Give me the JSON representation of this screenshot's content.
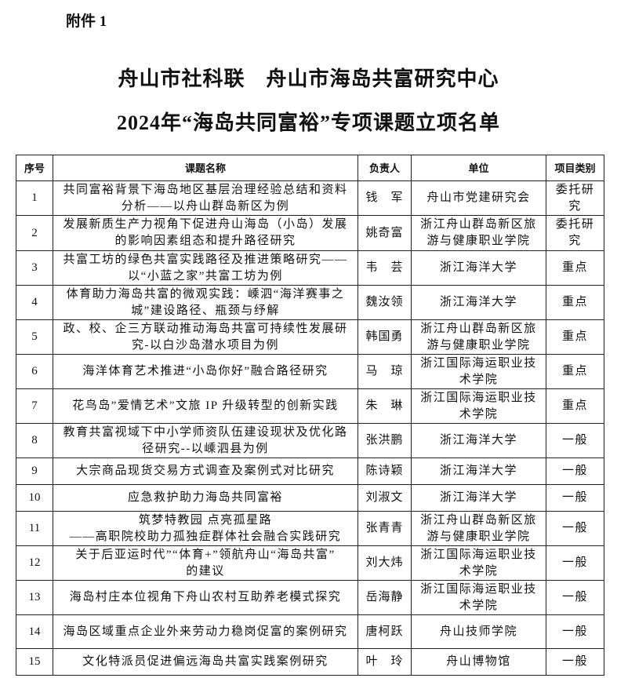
{
  "attachment_label": "附件 1",
  "title_line1": "舟山市社科联　舟山市海岛共富研究中心",
  "title_line2": "2024年“海岛共同富裕”专项课题立项名单",
  "table": {
    "headers": [
      "序号",
      "课题名称",
      "负责人",
      "单位",
      "项目类别"
    ],
    "rows": [
      {
        "no": "1",
        "title": [
          "共同富裕背景下海岛地区基层治理经验总结和资料",
          "分析——以舟山群岛新区为例"
        ],
        "person": "钱　军",
        "unit": [
          "舟山市党建研究会"
        ],
        "category": "委托研究"
      },
      {
        "no": "2",
        "title": [
          "发展新质生产力视角下促进舟山海岛（小岛）发展",
          "的影响因素组态和提升路径研究"
        ],
        "person": "姚奇富",
        "unit": [
          "浙江舟山群岛新区旅",
          "游与健康职业学院"
        ],
        "category": "委托研究"
      },
      {
        "no": "3",
        "title": [
          "共富工坊的绿色共富实践路径及推进策略研究——",
          "以“小蓝之家”共富工坊为例"
        ],
        "person": "韦　芸",
        "unit": [
          "浙江海洋大学"
        ],
        "category": "重点"
      },
      {
        "no": "4",
        "title": [
          "体育助力海岛共富的微观实践：嵊泗“海洋赛事之",
          "城”建设路径、瓶颈与纾解"
        ],
        "person": "魏汝领",
        "unit": [
          "浙江海洋大学"
        ],
        "category": "重点"
      },
      {
        "no": "5",
        "title": [
          "政、校、企三方联动推动海岛共富可持续性发展研",
          "究-以白沙岛潜水项目为例"
        ],
        "person": "韩国勇",
        "unit": [
          "浙江舟山群岛新区旅",
          "游与健康职业学院"
        ],
        "category": "重点"
      },
      {
        "no": "6",
        "title": [
          "海洋体育艺术推进“小岛你好”融合路径研究"
        ],
        "person": "马　琼",
        "unit": [
          "浙江国际海运职业技",
          "术学院"
        ],
        "category": "重点"
      },
      {
        "no": "7",
        "title": [
          "花鸟岛”爱情艺术”文旅 IP 升级转型的创新实践"
        ],
        "person": "朱　琳",
        "unit": [
          "浙江国际海运职业技",
          "术学院"
        ],
        "category": "重点"
      },
      {
        "no": "8",
        "title": [
          "教育共富视域下中小学师资队伍建设现状及优化路",
          "径研究--以嵊泗县为例"
        ],
        "person": "张洪鹏",
        "unit": [
          "浙江海洋大学"
        ],
        "category": "一般"
      },
      {
        "no": "9",
        "title": [
          "大宗商品现货交易方式调查及案例式对比研究"
        ],
        "person": "陈诗颖",
        "unit": [
          "浙江海洋大学"
        ],
        "category": "一般"
      },
      {
        "no": "10",
        "title": [
          "应急救护助力海岛共同富裕"
        ],
        "person": "刘淑文",
        "unit": [
          "浙江海洋大学"
        ],
        "category": "一般"
      },
      {
        "no": "11",
        "title": [
          "筑梦特教园 点亮孤星路",
          "——高职院校助力孤独症群体社会融合实践研究"
        ],
        "person": "张青青",
        "unit": [
          "浙江舟山群岛新区旅",
          "游与健康职业学院"
        ],
        "category": "一般"
      },
      {
        "no": "12",
        "title": [
          "关于后亚运时代”“体育+”领航舟山“海岛共富”",
          "的建议"
        ],
        "person": "刘大炜",
        "unit": [
          "浙江国际海运职业技",
          "术学院"
        ],
        "category": "一般"
      },
      {
        "no": "13",
        "title": [
          "海岛村庄本位视角下舟山农村互助养老模式探究"
        ],
        "person": "岳海静",
        "unit": [
          "浙江国际海运职业技",
          "术学院"
        ],
        "category": "一般"
      },
      {
        "no": "14",
        "title": [
          "海岛区域重点企业外来劳动力稳岗促富的案例研究"
        ],
        "person": "唐柯跃",
        "unit": [
          "舟山技师学院"
        ],
        "category": "一般"
      },
      {
        "no": "15",
        "title": [
          "文化特派员促进偏远海岛共富实践案例研究"
        ],
        "person": "叶　玲",
        "unit": [
          "舟山博物馆"
        ],
        "category": "一般"
      }
    ]
  }
}
